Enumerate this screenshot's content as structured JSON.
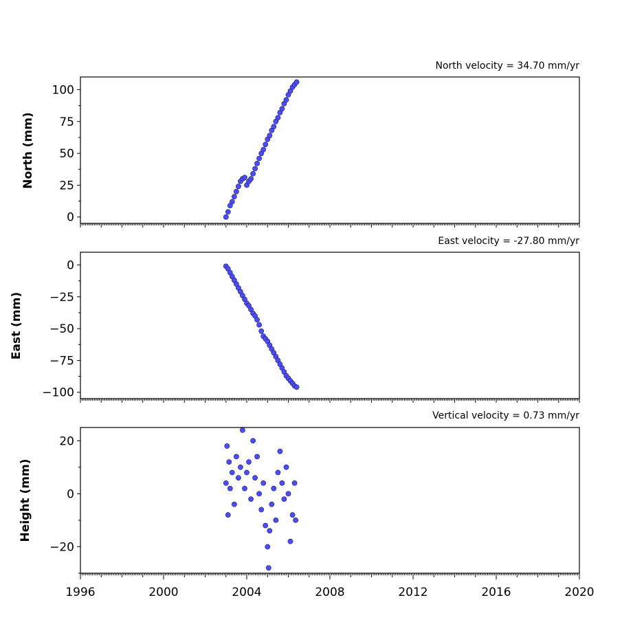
{
  "chart_data": [
    {
      "type": "scatter",
      "title": "North velocity = 34.70 mm/yr",
      "ylabel": "North (mm)",
      "xlabel": "",
      "xlim": [
        1996,
        2020
      ],
      "ylim": [
        -5,
        110
      ],
      "yticks": [
        "0",
        "25",
        "50",
        "75",
        "100"
      ],
      "ytick_values": [
        0,
        25,
        50,
        75,
        100
      ],
      "point_color": "#4b4bff",
      "series": [
        {
          "x": [
            2003.0,
            2003.1,
            2003.2,
            2003.3,
            2003.4,
            2003.5,
            2003.6,
            2003.7,
            2003.8,
            2003.9,
            2004.0,
            2004.1,
            2004.2,
            2004.3,
            2004.4,
            2004.5,
            2004.6,
            2004.7,
            2004.8,
            2004.9,
            2005.0,
            2005.1,
            2005.2,
            2005.3,
            2005.4,
            2005.5,
            2005.6,
            2005.7,
            2005.8,
            2005.9,
            2006.0,
            2006.1,
            2006.2,
            2006.3,
            2006.4
          ],
          "y": [
            0,
            4,
            9,
            12,
            16,
            20,
            24,
            28,
            30,
            31,
            25,
            28,
            30,
            34,
            38,
            42,
            46,
            50,
            53,
            57,
            61,
            64,
            68,
            71,
            75,
            78,
            82,
            85,
            89,
            92,
            96,
            99,
            102,
            104,
            106
          ]
        }
      ]
    },
    {
      "type": "scatter",
      "title": "East velocity = -27.80 mm/yr",
      "ylabel": "East (mm)",
      "xlabel": "",
      "xlim": [
        1996,
        2020
      ],
      "ylim": [
        -105,
        10
      ],
      "yticks": [
        "0",
        "−25",
        "−50",
        "−75",
        "−100"
      ],
      "ytick_values": [
        0,
        -25,
        -50,
        -75,
        -100
      ],
      "point_color": "#4b4bff",
      "series": [
        {
          "x": [
            2003.0,
            2003.1,
            2003.2,
            2003.3,
            2003.4,
            2003.5,
            2003.6,
            2003.7,
            2003.8,
            2003.9,
            2004.0,
            2004.1,
            2004.2,
            2004.3,
            2004.4,
            2004.5,
            2004.6,
            2004.7,
            2004.8,
            2004.9,
            2005.0,
            2005.1,
            2005.2,
            2005.3,
            2005.4,
            2005.5,
            2005.6,
            2005.7,
            2005.8,
            2005.9,
            2006.0,
            2006.1,
            2006.2,
            2006.3,
            2006.4
          ],
          "y": [
            -1,
            -3,
            -6,
            -9,
            -12,
            -15,
            -18,
            -21,
            -24,
            -27,
            -30,
            -32,
            -35,
            -38,
            -40,
            -43,
            -47,
            -52,
            -56,
            -58,
            -60,
            -63,
            -66,
            -69,
            -72,
            -75,
            -78,
            -81,
            -84,
            -87,
            -89,
            -91,
            -93,
            -95,
            -96
          ]
        }
      ]
    },
    {
      "type": "scatter",
      "title": "Vertical velocity = 0.73 mm/yr",
      "ylabel": "Height (mm)",
      "xlabel": "",
      "xlim": [
        1996,
        2020
      ],
      "ylim": [
        -30,
        25
      ],
      "yticks": [
        "−20",
        "0",
        "20"
      ],
      "ytick_values": [
        -20,
        0,
        20
      ],
      "xticks": [
        "1996",
        "2000",
        "2004",
        "2008",
        "2012",
        "2016",
        "2020"
      ],
      "xtick_values": [
        1996,
        2000,
        2004,
        2008,
        2012,
        2016,
        2020
      ],
      "point_color": "#4b4bff",
      "series": [
        {
          "x": [
            2003.0,
            2003.05,
            2003.1,
            2003.15,
            2003.2,
            2003.3,
            2003.4,
            2003.5,
            2003.6,
            2003.7,
            2003.8,
            2003.9,
            2004.0,
            2004.1,
            2004.2,
            2004.3,
            2004.4,
            2004.5,
            2004.6,
            2004.7,
            2004.8,
            2004.9,
            2005.0,
            2005.05,
            2005.1,
            2005.2,
            2005.3,
            2005.4,
            2005.5,
            2005.6,
            2005.7,
            2005.8,
            2005.9,
            2006.0,
            2006.1,
            2006.2,
            2006.3,
            2006.35
          ],
          "y": [
            4,
            18,
            -8,
            12,
            2,
            8,
            -4,
            14,
            6,
            10,
            24,
            2,
            8,
            12,
            -2,
            20,
            6,
            14,
            0,
            -6,
            4,
            -12,
            -20,
            -28,
            -14,
            -4,
            2,
            -10,
            8,
            16,
            4,
            -2,
            10,
            0,
            -18,
            -8,
            4,
            -10
          ]
        }
      ]
    }
  ]
}
